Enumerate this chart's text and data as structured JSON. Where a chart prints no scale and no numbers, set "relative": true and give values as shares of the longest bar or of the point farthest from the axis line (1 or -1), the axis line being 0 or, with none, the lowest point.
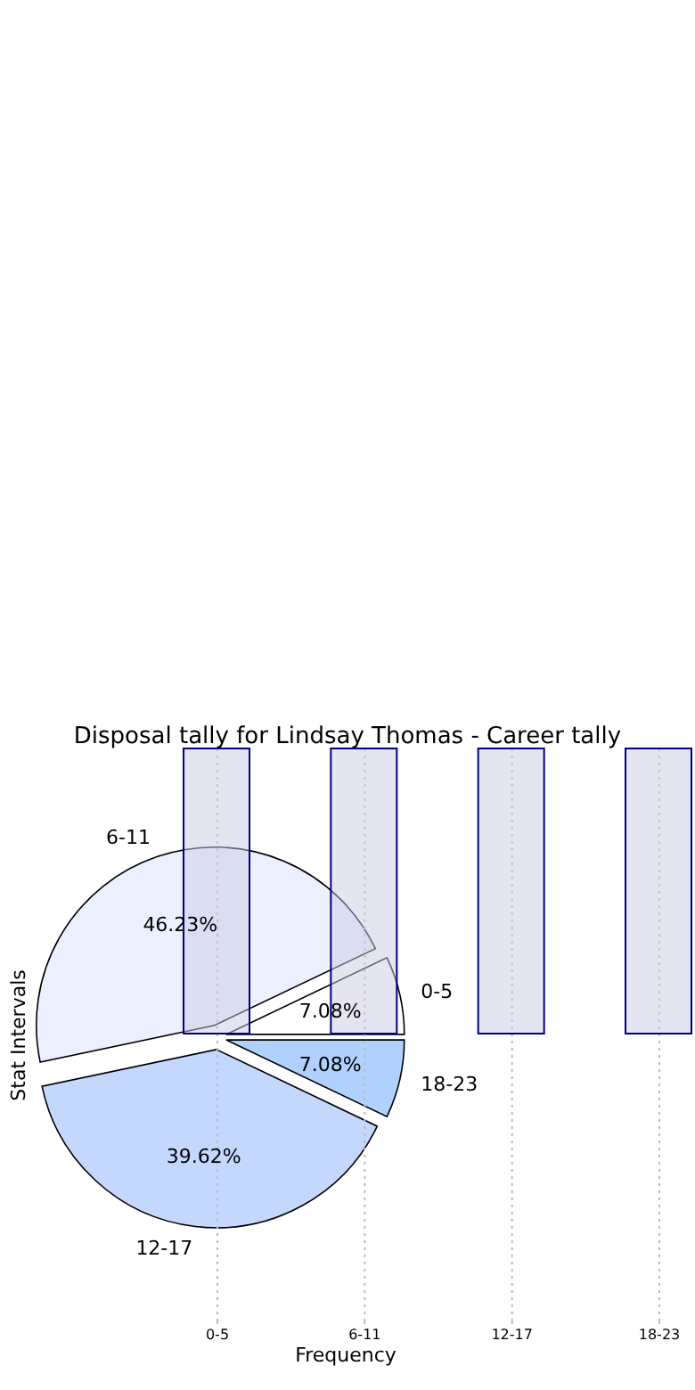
{
  "chart_data": [
    {
      "type": "bar",
      "title": "Disposal tally for Lindsay Thomas - Career tally",
      "xlabel": "Frequency",
      "ylabel": "Stat Intervals",
      "categories": [
        "0-5",
        "6-11",
        "12-17",
        "18-23"
      ],
      "values": [
        1,
        1,
        1,
        1
      ],
      "relative": true,
      "color": "#ccccE6",
      "grid": "x"
    },
    {
      "type": "pie",
      "categories": [
        "0-5",
        "6-11",
        "12-17",
        "18-23"
      ],
      "values": [
        7.08,
        46.23,
        39.62,
        7.08
      ],
      "colors": [
        "#ffffff",
        "#eaf0fd",
        "#c4d8fe",
        "#b0d0fe"
      ],
      "value_labels": [
        "7.08%",
        "46.23%",
        "39.62%",
        "7.08%"
      ]
    }
  ]
}
